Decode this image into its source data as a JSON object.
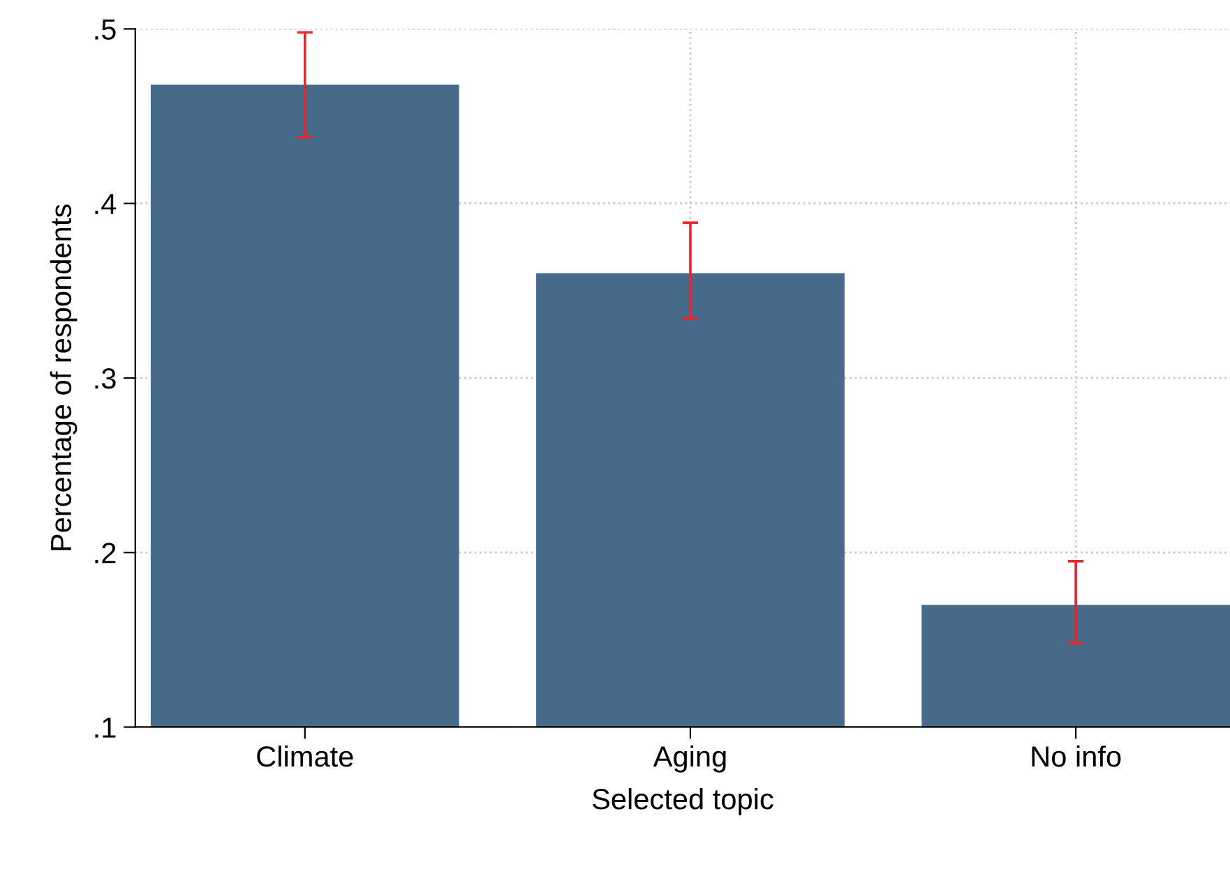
{
  "chart_data": {
    "type": "bar",
    "xlabel": "Selected topic",
    "ylabel": "Percentage of respondents",
    "categories": [
      "Climate",
      "Aging",
      "No info"
    ],
    "values": [
      0.468,
      0.36,
      0.17
    ],
    "errors": [
      [
        0.438,
        0.498
      ],
      [
        0.334,
        0.389
      ],
      [
        0.148,
        0.195
      ]
    ],
    "color": "#476a8a",
    "ylim": [
      0.1,
      0.5
    ],
    "yticks": [
      {
        "value": 0.1,
        "label": ".1"
      },
      {
        "value": 0.2,
        "label": ".2"
      },
      {
        "value": 0.3,
        "label": ".3"
      },
      {
        "value": 0.4,
        "label": ".4"
      },
      {
        "value": 0.5,
        "label": ".5"
      }
    ],
    "grid": true
  }
}
